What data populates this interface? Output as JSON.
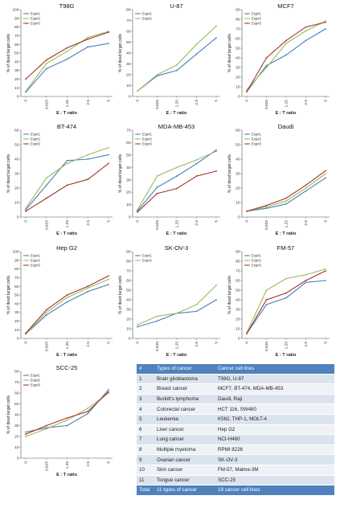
{
  "colors": {
    "exp1": "#4a7ebb",
    "exp2": "#9bbb59",
    "exp3": "#a3352b",
    "table_header": "#4f81bd",
    "table_row_odd": "#dbe3ee",
    "table_row_even": "#eef2f7"
  },
  "chart_data": [
    {
      "type": "line",
      "title": "T98G",
      "xlabel": "E : T ratio",
      "ylabel": "% of dead target cells",
      "categories": [
        "0",
        "0.625",
        "1.25",
        "2.5",
        "5"
      ],
      "ylim": [
        0,
        100
      ],
      "yticks": [
        0,
        10,
        20,
        30,
        40,
        50,
        60,
        70,
        80,
        90,
        100
      ],
      "legend": "top-left",
      "series": [
        {
          "name": "Exp#1",
          "values": [
            5,
            32,
            43,
            57,
            61
          ]
        },
        {
          "name": "Exp#2",
          "values": [
            6,
            38,
            52,
            68,
            75
          ]
        },
        {
          "name": "Exp#3",
          "values": [
            20,
            42,
            56,
            66,
            74
          ]
        }
      ]
    },
    {
      "type": "line",
      "title": "U-87",
      "xlabel": "E : T ratio",
      "ylabel": "% of dead target cells",
      "categories": [
        "0",
        "0.625",
        "1.25",
        "2.5",
        "5"
      ],
      "ylim": [
        0,
        80
      ],
      "yticks": [
        0,
        10,
        20,
        30,
        40,
        50,
        60,
        70,
        80
      ],
      "legend": "top-left",
      "series": [
        {
          "name": "Exp#1",
          "values": [
            5,
            19,
            24,
            39,
            54
          ]
        },
        {
          "name": "Exp#2",
          "values": [
            5,
            20,
            29,
            48,
            65
          ]
        }
      ]
    },
    {
      "type": "line",
      "title": "MCF7",
      "xlabel": "E : T ratio",
      "ylabel": "% of dead target cells",
      "categories": [
        "0",
        "0.625",
        "1.25",
        "2.5",
        "5"
      ],
      "ylim": [
        0,
        90
      ],
      "yticks": [
        0,
        10,
        20,
        30,
        40,
        50,
        60,
        70,
        80,
        90
      ],
      "legend": "top-left",
      "series": [
        {
          "name": "Exp#1",
          "values": [
            5,
            32,
            43,
            58,
            70
          ]
        },
        {
          "name": "Exp#2",
          "values": [
            7,
            30,
            55,
            68,
            78
          ]
        },
        {
          "name": "Exp#3",
          "values": [
            5,
            40,
            58,
            72,
            77
          ]
        }
      ]
    },
    {
      "type": "line",
      "title": "BT-474",
      "xlabel": "E : T ratio",
      "ylabel": "% of dead target cells",
      "categories": [
        "0",
        "0.625",
        "1.25",
        "2.5",
        "5"
      ],
      "ylim": [
        0,
        60
      ],
      "yticks": [
        0,
        10,
        20,
        30,
        40,
        50,
        60
      ],
      "legend": "top-left",
      "series": [
        {
          "name": "Exp#1",
          "values": [
            5,
            22,
            39,
            40,
            43
          ]
        },
        {
          "name": "Exp#2",
          "values": [
            6,
            27,
            37,
            43,
            48
          ]
        },
        {
          "name": "Exp#3",
          "values": [
            4,
            13,
            22,
            26,
            37
          ]
        }
      ]
    },
    {
      "type": "line",
      "title": "MDA-MB-453",
      "xlabel": "E : T ratio",
      "ylabel": "% of dead target cells",
      "categories": [
        "0",
        "0.625",
        "1.25",
        "2.5",
        "5"
      ],
      "ylim": [
        0,
        70
      ],
      "yticks": [
        0,
        10,
        20,
        30,
        40,
        50,
        60,
        70
      ],
      "legend": "top-left",
      "series": [
        {
          "name": "Exp#1",
          "values": [
            5,
            24,
            33,
            43,
            54
          ]
        },
        {
          "name": "Exp#2",
          "values": [
            6,
            33,
            40,
            46,
            53
          ]
        },
        {
          "name": "Exp#3",
          "values": [
            4,
            19,
            23,
            33,
            37
          ]
        }
      ]
    },
    {
      "type": "line",
      "title": "Daudi",
      "xlabel": "E : T ratio",
      "ylabel": "% of dead target cells",
      "categories": [
        "0",
        "0.625",
        "1.25",
        "2.5",
        "5"
      ],
      "ylim": [
        0,
        60
      ],
      "yticks": [
        0,
        10,
        20,
        30,
        40,
        50,
        60
      ],
      "legend": "top-left",
      "series": [
        {
          "name": "Exp#1",
          "values": [
            4,
            6,
            9,
            18,
            27
          ]
        },
        {
          "name": "Exp#2",
          "values": [
            4,
            7,
            11,
            20,
            30
          ]
        },
        {
          "name": "Exp#3",
          "values": [
            4,
            8,
            13,
            22,
            32
          ]
        }
      ]
    },
    {
      "type": "line",
      "title": "Hep G2",
      "xlabel": "E : T ratio",
      "ylabel": "% of dead target cells",
      "categories": [
        "0",
        "0.625",
        "1.25",
        "2.5",
        "5"
      ],
      "ylim": [
        0,
        100
      ],
      "yticks": [
        0,
        10,
        20,
        30,
        40,
        50,
        60,
        70,
        80,
        90,
        100
      ],
      "legend": "top-left",
      "series": [
        {
          "name": "Exp#1",
          "values": [
            5,
            27,
            42,
            54,
            62
          ]
        },
        {
          "name": "Exp#2",
          "values": [
            5,
            30,
            47,
            58,
            68
          ]
        },
        {
          "name": "Exp#3",
          "values": [
            6,
            33,
            50,
            60,
            72
          ]
        }
      ]
    },
    {
      "type": "line",
      "title": "SK-OV-3",
      "xlabel": "E : T ratio",
      "ylabel": "% of dead target cells",
      "categories": [
        "0",
        "0.625",
        "1.25",
        "2.5",
        "5"
      ],
      "ylim": [
        0,
        90
      ],
      "yticks": [
        0,
        10,
        20,
        30,
        40,
        50,
        60,
        70,
        80,
        90
      ],
      "legend": "top-left",
      "series": [
        {
          "name": "Exp#1",
          "values": [
            12,
            18,
            26,
            28,
            40
          ]
        },
        {
          "name": "Exp#2",
          "values": [
            14,
            23,
            26,
            35,
            55
          ]
        }
      ]
    },
    {
      "type": "line",
      "title": "FM-57",
      "xlabel": "E : T ratio",
      "ylabel": "% of dead target cells",
      "categories": [
        "0",
        "0.625",
        "1.25",
        "2.5",
        "5"
      ],
      "ylim": [
        0,
        90
      ],
      "yticks": [
        0,
        10,
        20,
        30,
        40,
        50,
        60,
        70,
        80,
        90
      ],
      "legend": "top-left",
      "series": [
        {
          "name": "Exp#1",
          "values": [
            5,
            35,
            42,
            58,
            60
          ]
        },
        {
          "name": "Exp#2",
          "values": [
            6,
            50,
            62,
            66,
            72
          ]
        },
        {
          "name": "Exp#3",
          "values": [
            5,
            40,
            47,
            60,
            70
          ]
        }
      ]
    },
    {
      "type": "line",
      "title": "SCC-25",
      "xlabel": "E : T ratio",
      "ylabel": "% of dead target cells",
      "categories": [
        "0",
        "0.625",
        "1.25",
        "2.5",
        "5"
      ],
      "ylim": [
        0,
        80
      ],
      "yticks": [
        0,
        10,
        20,
        30,
        40,
        50,
        60,
        70,
        80
      ],
      "legend": "top-left",
      "series": [
        {
          "name": "Exp#1",
          "values": [
            24,
            28,
            30,
            41,
            63
          ]
        },
        {
          "name": "Exp#2",
          "values": [
            20,
            27,
            35,
            46,
            60
          ]
        },
        {
          "name": "Exp#3",
          "values": [
            22,
            30,
            37,
            43,
            61
          ]
        }
      ]
    }
  ],
  "table": {
    "headers": [
      "#",
      "Types of cancer",
      "Cancer cell lines"
    ],
    "rows": [
      [
        "1",
        "Brain glioblastoma",
        "T98G, U-87"
      ],
      [
        "2",
        "Breast cancer",
        "MCF7, BT-474, MDA-MB-453"
      ],
      [
        "3",
        "Burkitt's lymphoma",
        "Daudi, Raji"
      ],
      [
        "4",
        "Colorectal cancer",
        "HCT 116, SW480"
      ],
      [
        "5",
        "Leukemia",
        "K562, THP-1, MOLT-4"
      ],
      [
        "6",
        "Liver cancer",
        "Hep G2"
      ],
      [
        "7",
        "Lung cancer",
        "NCI-H460"
      ],
      [
        "8",
        "Multiple myeloma",
        "RPMI 8226"
      ],
      [
        "9",
        "Ovarian cancer",
        "SK-OV-3"
      ],
      [
        "10",
        "Skin cancer",
        "FM-57, Malme-3M"
      ],
      [
        "11",
        "Tongue cancer",
        "SCC-25"
      ]
    ],
    "total": [
      "Total",
      "11 types of cancer",
      "19 cancer cell lines"
    ]
  }
}
